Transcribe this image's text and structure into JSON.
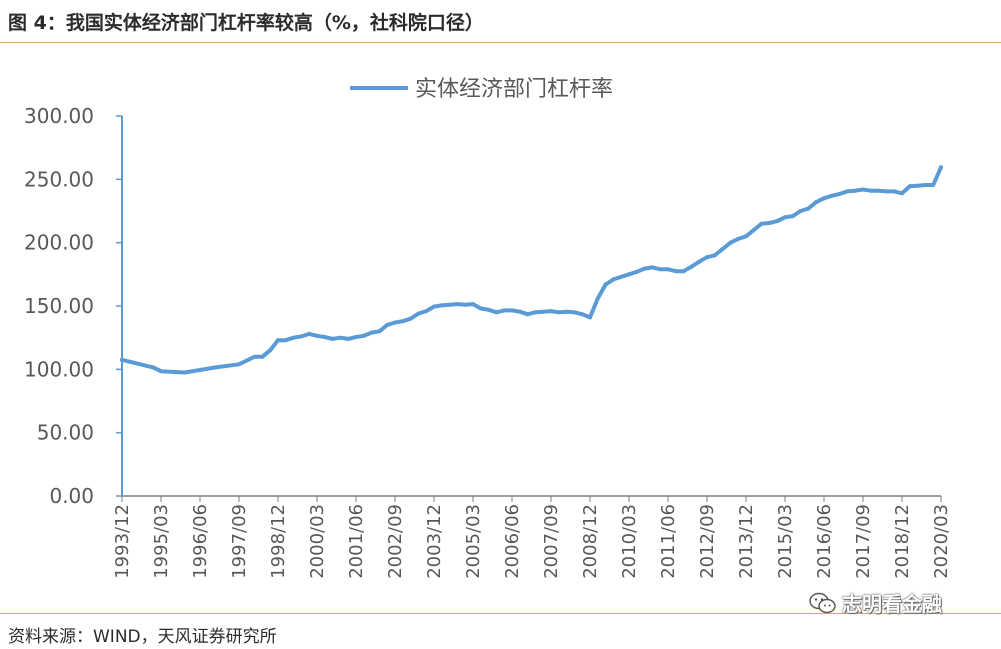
{
  "figure": {
    "title": "图 4：我国实体经济部门杠杆率较高（%，社科院口径）",
    "source": "资料来源：WIND，天风证券研究所",
    "watermark": "志明看金融"
  },
  "chart_data": {
    "type": "line",
    "title": "",
    "xlabel": "",
    "ylabel": "",
    "ylim": [
      0,
      300
    ],
    "grid": false,
    "legend_position": "top-center",
    "y_ticks": [
      "0.00",
      "50.00",
      "100.00",
      "150.00",
      "200.00",
      "250.00",
      "300.00"
    ],
    "x_tick_labels": [
      "1993/12",
      "1995/03",
      "1996/06",
      "1997/09",
      "1998/12",
      "2000/03",
      "2001/06",
      "2002/09",
      "2003/12",
      "2005/03",
      "2006/06",
      "2007/09",
      "2008/12",
      "2010/03",
      "2011/06",
      "2012/09",
      "2013/12",
      "2015/03",
      "2016/06",
      "2017/09",
      "2018/12",
      "2020/03"
    ],
    "series": [
      {
        "name": "实体经济部门杠杆率",
        "color": "#5b9bd5",
        "points": [
          [
            "1993/12",
            107.5
          ],
          [
            "1994/12",
            101.5
          ],
          [
            "1995/03",
            98.5
          ],
          [
            "1995/12",
            97.5
          ],
          [
            "1996/06",
            99.5
          ],
          [
            "1996/12",
            101.5
          ],
          [
            "1997/09",
            104
          ],
          [
            "1997/12",
            107
          ],
          [
            "1998/03",
            110
          ],
          [
            "1998/06",
            110
          ],
          [
            "1998/09",
            115
          ],
          [
            "1998/12",
            123
          ],
          [
            "1999/03",
            123
          ],
          [
            "1999/06",
            125
          ],
          [
            "1999/09",
            126
          ],
          [
            "1999/12",
            128
          ],
          [
            "2000/03",
            126.5
          ],
          [
            "2000/06",
            125.5
          ],
          [
            "2000/09",
            124
          ],
          [
            "2000/12",
            125
          ],
          [
            "2001/03",
            124
          ],
          [
            "2001/06",
            125.5
          ],
          [
            "2001/09",
            126.5
          ],
          [
            "2001/12",
            129
          ],
          [
            "2002/03",
            130
          ],
          [
            "2002/06",
            135
          ],
          [
            "2002/09",
            137
          ],
          [
            "2002/12",
            138
          ],
          [
            "2003/03",
            140
          ],
          [
            "2003/06",
            144
          ],
          [
            "2003/09",
            146
          ],
          [
            "2003/12",
            149.5
          ],
          [
            "2004/03",
            150.5
          ],
          [
            "2004/06",
            151
          ],
          [
            "2004/09",
            151.5
          ],
          [
            "2004/12",
            151
          ],
          [
            "2005/03",
            151.5
          ],
          [
            "2005/06",
            148
          ],
          [
            "2005/09",
            147
          ],
          [
            "2005/12",
            145
          ],
          [
            "2006/03",
            146.5
          ],
          [
            "2006/06",
            146.5
          ],
          [
            "2006/09",
            145.5
          ],
          [
            "2006/12",
            143.5
          ],
          [
            "2007/03",
            145
          ],
          [
            "2007/06",
            145.5
          ],
          [
            "2007/09",
            146
          ],
          [
            "2007/12",
            145
          ],
          [
            "2008/03",
            145.5
          ],
          [
            "2008/06",
            145
          ],
          [
            "2008/09",
            143.5
          ],
          [
            "2008/12",
            141
          ],
          [
            "2009/03",
            156
          ],
          [
            "2009/06",
            167
          ],
          [
            "2009/09",
            171
          ],
          [
            "2009/12",
            173
          ],
          [
            "2010/03",
            175
          ],
          [
            "2010/06",
            177
          ],
          [
            "2010/09",
            179.5
          ],
          [
            "2010/12",
            180.5
          ],
          [
            "2011/03",
            179
          ],
          [
            "2011/06",
            179
          ],
          [
            "2011/09",
            177.5
          ],
          [
            "2011/12",
            177.5
          ],
          [
            "2012/03",
            181
          ],
          [
            "2012/06",
            185
          ],
          [
            "2012/09",
            188.5
          ],
          [
            "2012/12",
            190
          ],
          [
            "2013/03",
            195
          ],
          [
            "2013/06",
            200
          ],
          [
            "2013/09",
            203
          ],
          [
            "2013/12",
            205
          ],
          [
            "2014/03",
            210
          ],
          [
            "2014/06",
            215
          ],
          [
            "2014/09",
            215.5
          ],
          [
            "2014/12",
            217
          ],
          [
            "2015/03",
            220
          ],
          [
            "2015/06",
            221
          ],
          [
            "2015/09",
            225
          ],
          [
            "2015/12",
            227
          ],
          [
            "2016/03",
            232
          ],
          [
            "2016/06",
            235
          ],
          [
            "2016/09",
            237
          ],
          [
            "2016/12",
            238.5
          ],
          [
            "2017/03",
            240.5
          ],
          [
            "2017/06",
            241
          ],
          [
            "2017/09",
            242
          ],
          [
            "2017/12",
            241
          ],
          [
            "2018/03",
            241
          ],
          [
            "2018/06",
            240.5
          ],
          [
            "2018/09",
            240.5
          ],
          [
            "2018/12",
            239
          ],
          [
            "2019/03",
            244.5
          ],
          [
            "2019/06",
            245
          ],
          [
            "2019/09",
            245.5
          ],
          [
            "2019/12",
            245.5
          ],
          [
            "2020/03",
            259.5
          ]
        ]
      }
    ]
  }
}
